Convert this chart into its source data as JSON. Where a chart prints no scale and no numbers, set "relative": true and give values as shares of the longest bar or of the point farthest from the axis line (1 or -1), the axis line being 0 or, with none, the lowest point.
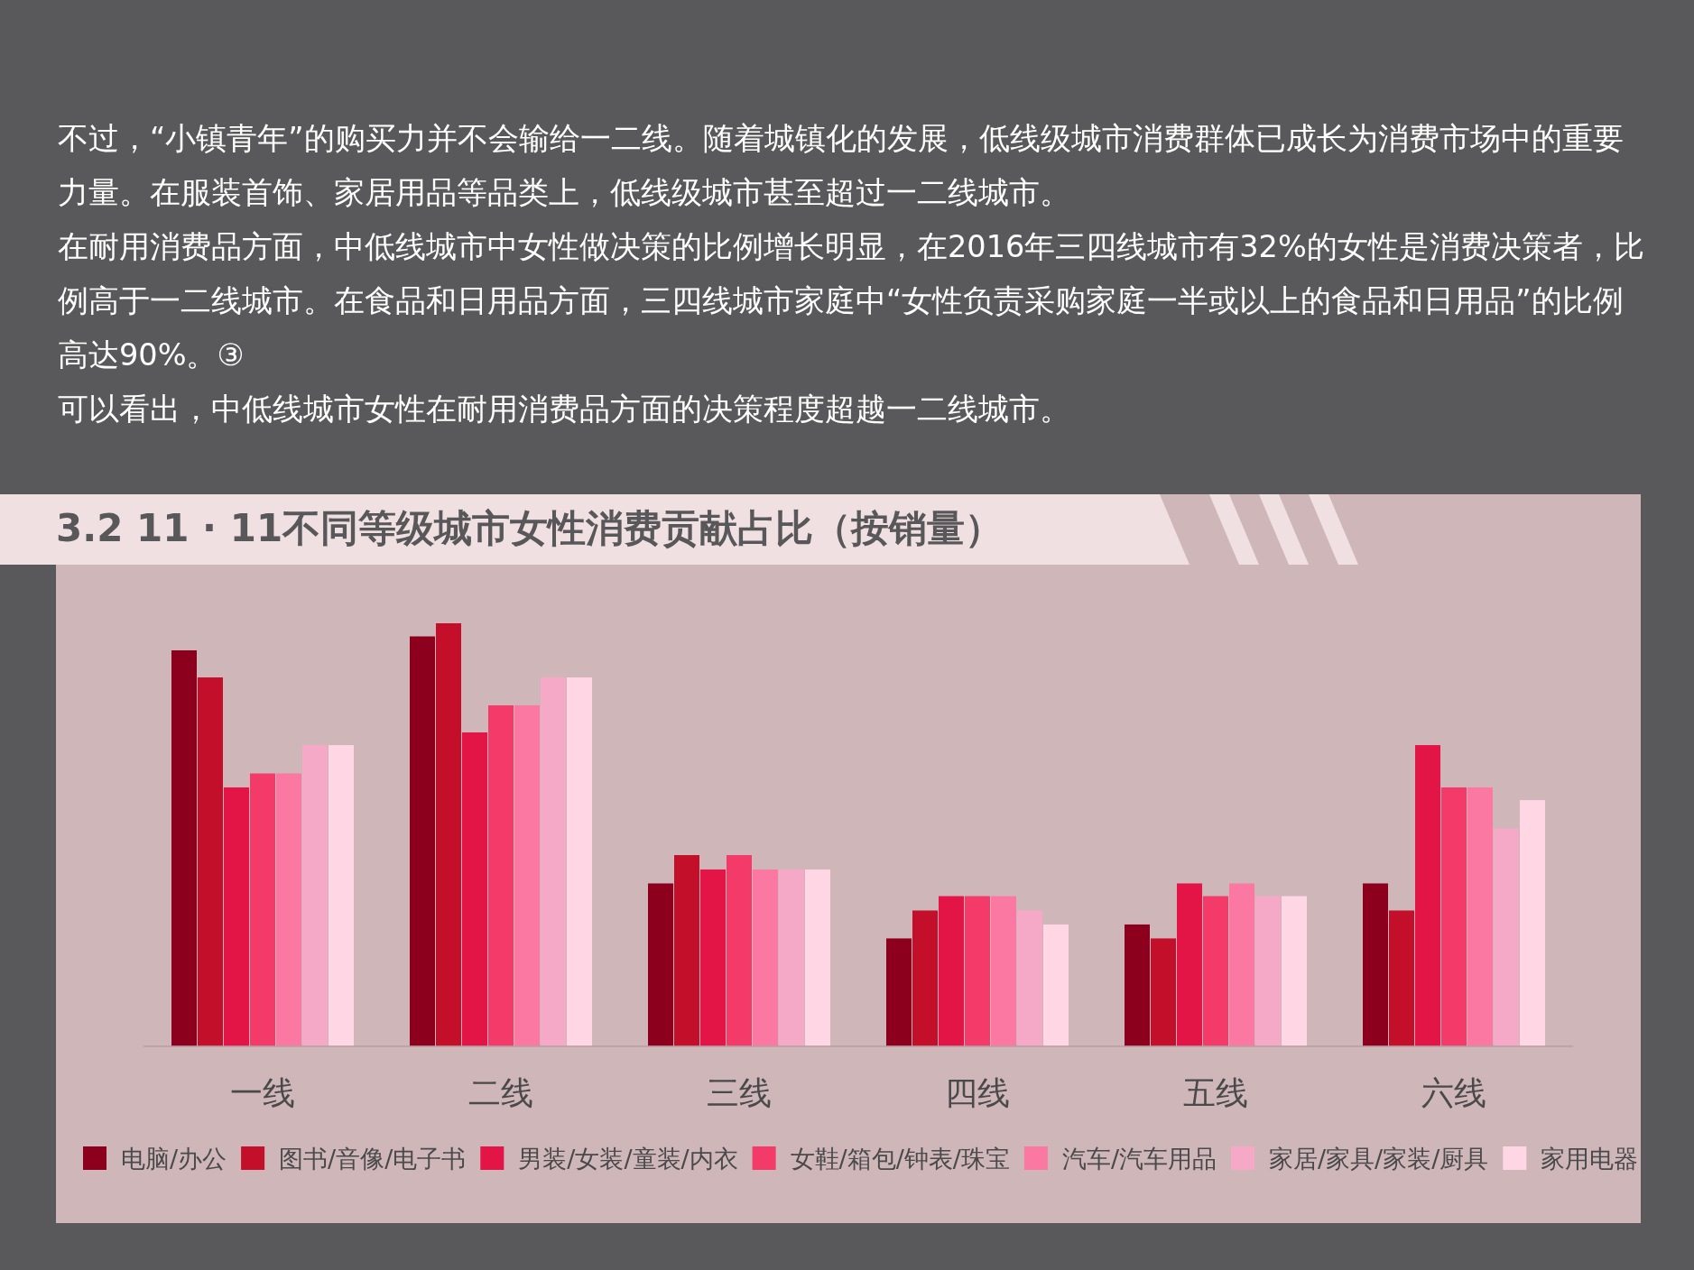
{
  "chart_data": {
    "type": "bar",
    "relative": true,
    "title": "3.2 11 · 11不同等级城市女性消费贡献占比（按销量）",
    "categories": [
      "一线",
      "二线",
      "三线",
      "四线",
      "五线",
      "六线"
    ],
    "series": [
      {
        "name": "电脑/办公",
        "color": "#8c001e",
        "values": [
          0.936,
          0.969,
          0.385,
          0.255,
          0.288,
          0.385
        ]
      },
      {
        "name": "图书/音像/电子书",
        "color": "#c40f2b",
        "values": [
          0.872,
          1,
          0.452,
          0.321,
          0.255,
          0.321
        ]
      },
      {
        "name": "男装/女装/童装/内衣",
        "color": "#e31446",
        "values": [
          0.612,
          0.742,
          0.418,
          0.355,
          0.385,
          0.712
        ]
      },
      {
        "name": "女鞋/箱包/钟表/珠宝",
        "color": "#f43a69",
        "values": [
          0.645,
          0.806,
          0.452,
          0.355,
          0.355,
          0.612
        ]
      },
      {
        "name": "汽车/汽车用品",
        "color": "#fa78a2",
        "values": [
          0.645,
          0.806,
          0.418,
          0.355,
          0.385,
          0.612
        ]
      },
      {
        "name": "家居/家具/家装/厨具",
        "color": "#f6a9c6",
        "values": [
          0.712,
          0.872,
          0.418,
          0.321,
          0.355,
          0.515
        ]
      },
      {
        "name": "家用电器",
        "color": "#fed6e4",
        "values": [
          0.712,
          0.872,
          0.418,
          0.288,
          0.355,
          0.582
        ]
      }
    ],
    "legend": "bottom",
    "annotations": [
      "不过，“小镇青年”的购买力并不会输给一二线。随着城镇化的发展，低线级城市消费群体已成长为消费市场中的重要力量。在服装首饰、家居用品等品类上，低线级城市甚至超过一二线城市。",
      "在耐用消费品方面，中低线城市中女性做决策的比例增长明显，在2016年三四线城市有32%的女性是消费决策者，比例高于一二线城市。在食品和日用品方面，三四线城市家庭中“女性负责采购家庭一半或以上的食品和日用品”的比例高达90%。③",
      "可以看出，中低线城市女性在耐用消费品方面的决策程度超越一二线城市。"
    ]
  }
}
